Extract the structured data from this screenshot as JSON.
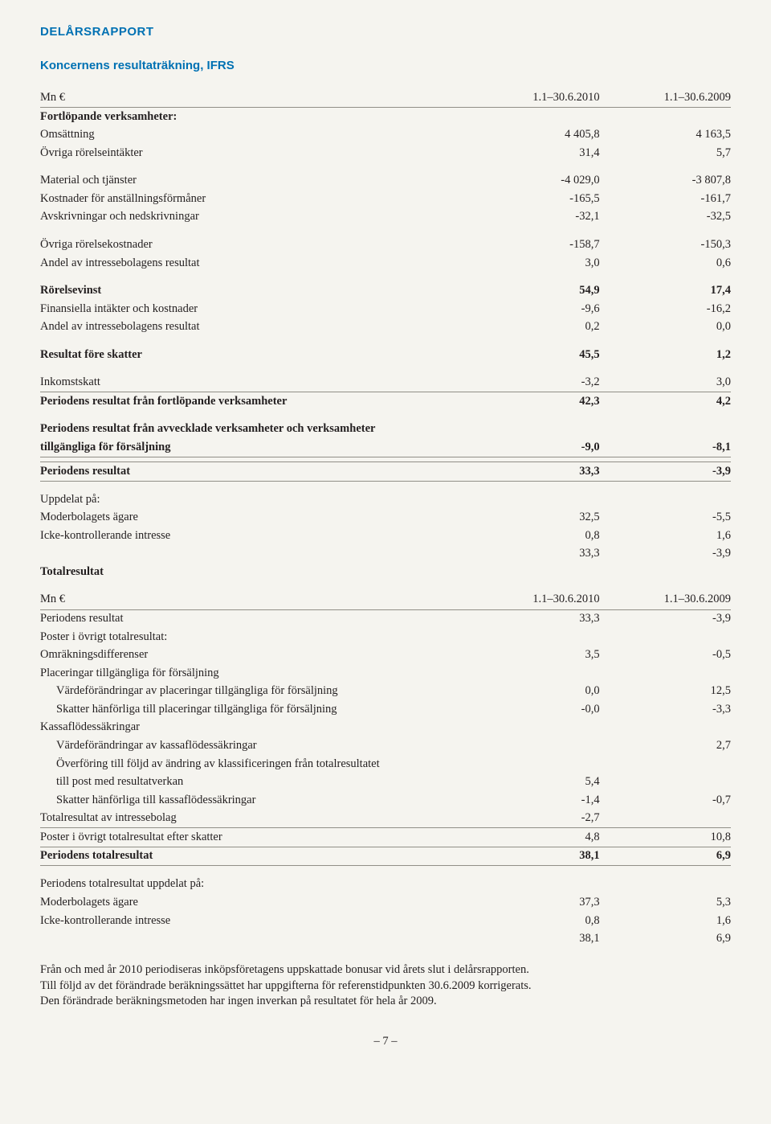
{
  "colors": {
    "brand": "#0071b3",
    "text": "#231f20",
    "rule": "#918f87",
    "page_bg": "#f5f4ef"
  },
  "header": {
    "brand": "DELÅRSRAPPORT",
    "subtitle": "Koncernens resultaträkning, IFRS"
  },
  "table1": {
    "head": {
      "unit": "Mn €",
      "c1": "1.1–30.6.2010",
      "c2": "1.1–30.6.2009"
    },
    "section1_title": "Fortlöpande verksamheter:",
    "rows1": [
      {
        "label": "Omsättning",
        "c1": "4 405,8",
        "c2": "4 163,5"
      },
      {
        "label": "Övriga rörelseintäkter",
        "c1": "31,4",
        "c2": "5,7"
      }
    ],
    "rows2": [
      {
        "label": "Material och tjänster",
        "c1": "-4 029,0",
        "c2": "-3 807,8"
      },
      {
        "label": "Kostnader för anställningsförmåner",
        "c1": "-165,5",
        "c2": "-161,7"
      },
      {
        "label": "Avskrivningar och nedskrivningar",
        "c1": "-32,1",
        "c2": "-32,5"
      }
    ],
    "rows3": [
      {
        "label": "Övriga rörelsekostnader",
        "c1": "-158,7",
        "c2": "-150,3"
      },
      {
        "label": "Andel av intressebolagens resultat",
        "c1": "3,0",
        "c2": "0,6"
      }
    ],
    "rows4": [
      {
        "label": "Rörelsevinst",
        "c1": "54,9",
        "c2": "17,4",
        "bold": true
      },
      {
        "label": "Finansiella intäkter och kostnader",
        "c1": "-9,6",
        "c2": "-16,2"
      },
      {
        "label": "Andel av intressebolagens resultat",
        "c1": "0,2",
        "c2": "0,0"
      }
    ],
    "row_resbefore": {
      "label": "Resultat före skatter",
      "c1": "45,5",
      "c2": "1,2"
    },
    "rows5": [
      {
        "label": "Inkomstskatt",
        "c1": "-3,2",
        "c2": "3,0"
      }
    ],
    "row_period_cont": {
      "label": "Periodens resultat från fortlöpande verksamheter",
      "c1": "42,3",
      "c2": "4,2"
    },
    "discontinued_label1": "Periodens resultat från avvecklade verksamheter och verksamheter",
    "discontinued_label2": "tillgängliga för försäljning",
    "discontinued": {
      "c1": "-9,0",
      "c2": "-8,1"
    },
    "row_period": {
      "label": "Periodens resultat",
      "c1": "33,3",
      "c2": "-3,9"
    },
    "split_title": "Uppdelat på:",
    "split_rows": [
      {
        "label": "Moderbolagets ägare",
        "c1": "32,5",
        "c2": "-5,5"
      },
      {
        "label": "Icke-kontrollerande intresse",
        "c1": "0,8",
        "c2": "1,6"
      },
      {
        "label": "",
        "c1": "33,3",
        "c2": "-3,9"
      }
    ],
    "totalresultat_label": "Totalresultat"
  },
  "table2": {
    "head": {
      "unit": "Mn €",
      "c1": "1.1–30.6.2010",
      "c2": "1.1–30.6.2009"
    },
    "rows": [
      {
        "label": "Periodens resultat",
        "c1": "33,3",
        "c2": "-3,9",
        "topline": true
      },
      {
        "label": "Poster i övrigt totalresultat:",
        "c1": "",
        "c2": ""
      },
      {
        "label": "Omräkningsdifferenser",
        "c1": "3,5",
        "c2": "-0,5"
      },
      {
        "label": "Placeringar tillgängliga för försäljning",
        "c1": "",
        "c2": ""
      },
      {
        "label": "Värdeförändringar av placeringar tillgängliga för försäljning",
        "c1": "0,0",
        "c2": "12,5",
        "indent": true
      },
      {
        "label": "Skatter hänförliga till placeringar tillgängliga för försäljning",
        "c1": "-0,0",
        "c2": "-3,3",
        "indent": true
      },
      {
        "label": "Kassaflödessäkringar",
        "c1": "",
        "c2": ""
      },
      {
        "label": "Värdeförändringar av kassaflödessäkringar",
        "c1": "",
        "c2": "2,7",
        "indent": true
      },
      {
        "label": "Överföring till följd av ändring av klassificeringen från totalresultatet",
        "c1": "",
        "c2": "",
        "indent": true
      },
      {
        "label": "till post med resultatverkan",
        "c1": "5,4",
        "c2": "",
        "indent": true
      },
      {
        "label": "Skatter hänförliga till kassaflödessäkringar",
        "c1": "-1,4",
        "c2": "-0,7",
        "indent": true
      },
      {
        "label": "Totalresultat av intressebolag",
        "c1": "-2,7",
        "c2": ""
      }
    ],
    "row_after": {
      "label": "Poster i övrigt totalresultat efter skatter",
      "c1": "4,8",
      "c2": "10,8"
    },
    "row_total": {
      "label": "Periodens totalresultat",
      "c1": "38,1",
      "c2": "6,9"
    },
    "split_title": "Periodens totalresultat uppdelat på:",
    "split_rows": [
      {
        "label": "Moderbolagets ägare",
        "c1": "37,3",
        "c2": "5,3"
      },
      {
        "label": "Icke-kontrollerande intresse",
        "c1": "0,8",
        "c2": "1,6"
      },
      {
        "label": "",
        "c1": "38,1",
        "c2": "6,9"
      }
    ]
  },
  "footnotes": [
    "Från och med år 2010 periodiseras inköpsföretagens uppskattade bonusar vid årets slut i delårsrapporten.",
    "Till följd av det förändrade beräkningssättet har uppgifterna för referenstidpunkten 30.6.2009 korrigerats.",
    "Den förändrade beräkningsmetoden har ingen inverkan på resultatet för hela år 2009."
  ],
  "pagenum": "– 7 –"
}
